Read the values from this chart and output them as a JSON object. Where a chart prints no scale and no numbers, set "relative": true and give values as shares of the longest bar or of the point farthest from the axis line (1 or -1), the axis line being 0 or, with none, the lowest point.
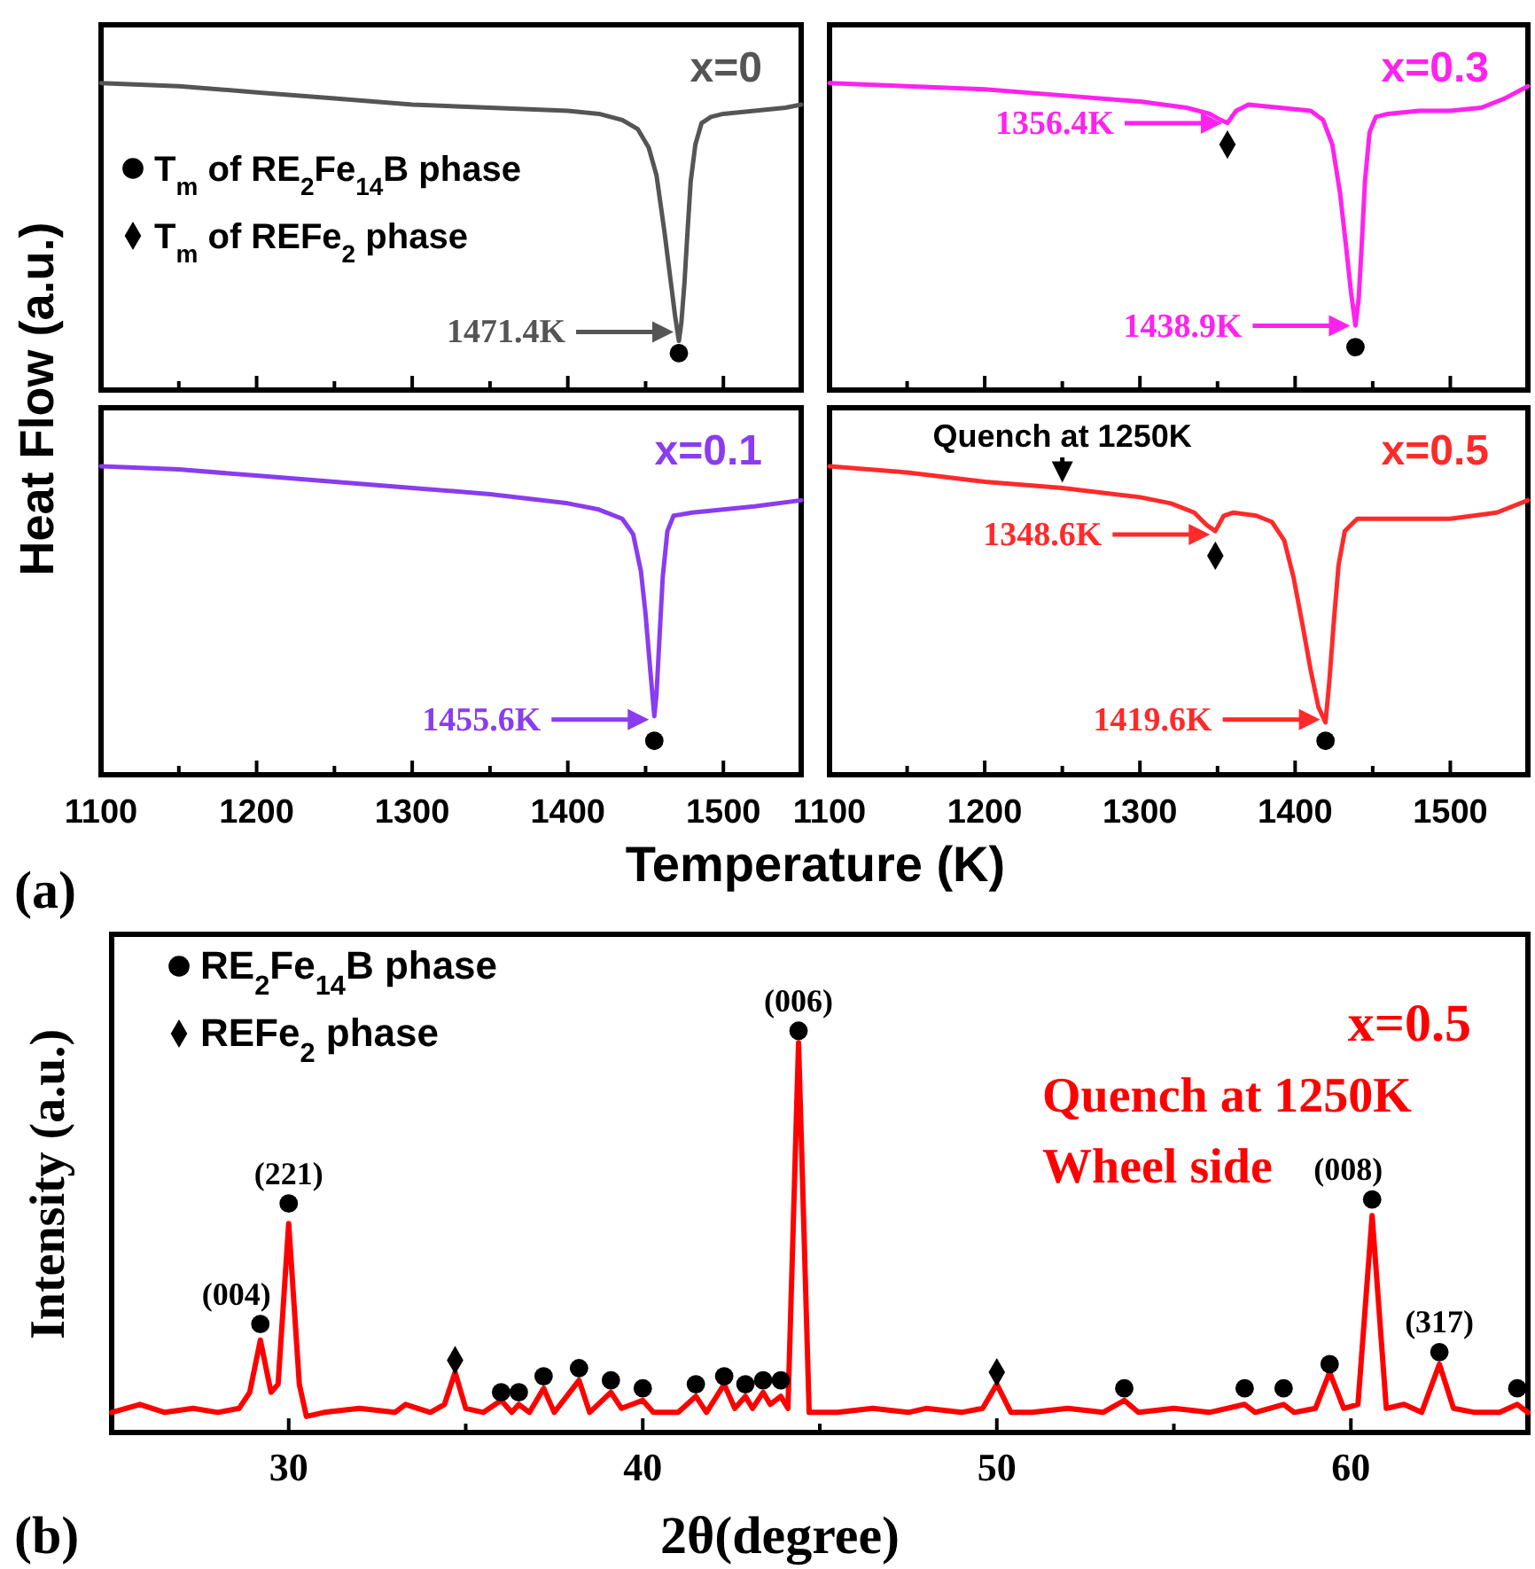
{
  "chart_data": [
    {
      "type": "line",
      "title": "x=0",
      "ylabel": "Heat Flow (a.u.)",
      "relative": true,
      "xlim": [
        1100,
        1550
      ],
      "xticks": [
        1100,
        {
          "value": 1150,
          "label": null
        },
        1200,
        {
          "value": 1250,
          "label": null
        },
        1300,
        {
          "value": 1350,
          "label": null
        },
        1400,
        {
          "value": 1450,
          "label": null
        },
        1500
      ],
      "tick_labels": false,
      "legend": "left",
      "annotations": [
        "1471.4K"
      ],
      "series": [
        {
          "color": "#555555",
          "x": [
            1100,
            1150,
            1200,
            1250,
            1300,
            1350,
            1400,
            1420,
            1435,
            1445,
            1452,
            1457,
            1462,
            1466,
            1469,
            1471.4,
            1473,
            1475,
            1477,
            1479,
            1482,
            1486,
            1492,
            1500,
            1520,
            1540,
            1550
          ],
          "values": [
            1,
            0.99,
            0.97,
            0.95,
            0.93,
            0.92,
            0.91,
            0.9,
            0.88,
            0.85,
            0.79,
            0.7,
            0.52,
            0.36,
            0.24,
            0.16,
            0.22,
            0.35,
            0.52,
            0.68,
            0.8,
            0.87,
            0.89,
            0.9,
            0.91,
            0.92,
            0.93
          ]
        },
        {
          "type": "scatter",
          "name": "T$_{m}$ of RE$_{2}$Fe$_{14}$B phase",
          "color": "#000000",
          "marker": "circle",
          "x": [
            1471.4
          ],
          "values": [
            0.12
          ]
        },
        {
          "type": "scatter",
          "name": "T$_{m}$ of REFe$_{2}$ phase",
          "color": "#000000",
          "marker": "diamond"
        }
      ]
    },
    {
      "type": "line",
      "title": "x=0.3",
      "relative": true,
      "xlim": [
        1100,
        1550
      ],
      "xticks": [
        1100,
        {
          "value": 1150,
          "label": null
        },
        1200,
        {
          "value": 1250,
          "label": null
        },
        1300,
        {
          "value": 1350,
          "label": null
        },
        1400,
        {
          "value": 1450,
          "label": null
        },
        1500
      ],
      "tick_labels": false,
      "annotations": [
        "1356.4K",
        "1438.9K"
      ],
      "series": [
        {
          "color": "#ff22ee",
          "x": [
            1100,
            1150,
            1200,
            1250,
            1300,
            1330,
            1345,
            1352,
            1356.4,
            1362,
            1370,
            1390,
            1410,
            1418,
            1424,
            1429,
            1433,
            1436,
            1438.9,
            1441,
            1443,
            1445,
            1448,
            1452,
            1460,
            1480,
            1500,
            1520,
            1535,
            1550
          ],
          "values": [
            1,
            0.99,
            0.98,
            0.96,
            0.94,
            0.92,
            0.9,
            0.88,
            0.87,
            0.91,
            0.93,
            0.92,
            0.91,
            0.88,
            0.8,
            0.64,
            0.46,
            0.32,
            0.21,
            0.3,
            0.48,
            0.68,
            0.84,
            0.89,
            0.9,
            0.91,
            0.91,
            0.92,
            0.95,
            0.99
          ]
        },
        {
          "type": "scatter",
          "color": "#000000",
          "marker": "diamond",
          "x": [
            1356.4
          ],
          "values": [
            0.8
          ]
        },
        {
          "type": "scatter",
          "color": "#000000",
          "marker": "circle",
          "x": [
            1438.9
          ],
          "values": [
            0.14
          ]
        }
      ]
    },
    {
      "type": "line",
      "title": "x=0.1",
      "xlabel": "Temperature (K)",
      "relative": true,
      "xlim": [
        1100,
        1550
      ],
      "xticks": [
        1100,
        {
          "value": 1150,
          "label": null
        },
        1200,
        {
          "value": 1250,
          "label": null
        },
        1300,
        {
          "value": 1350,
          "label": null
        },
        1400,
        {
          "value": 1450,
          "label": null
        },
        1500
      ],
      "tick_labels": "x",
      "annotations": [
        "(a)",
        "1455.6K"
      ],
      "series": [
        {
          "color": "#8a3cf0",
          "x": [
            1100,
            1150,
            1200,
            1250,
            1300,
            1350,
            1400,
            1420,
            1435,
            1442,
            1447,
            1450,
            1453,
            1455.6,
            1457,
            1459,
            1461,
            1464,
            1468,
            1480,
            1500,
            1520,
            1550
          ],
          "values": [
            1,
            0.99,
            0.97,
            0.95,
            0.93,
            0.91,
            0.88,
            0.86,
            0.83,
            0.78,
            0.66,
            0.52,
            0.34,
            0.19,
            0.26,
            0.45,
            0.64,
            0.79,
            0.84,
            0.85,
            0.86,
            0.87,
            0.89
          ]
        },
        {
          "type": "scatter",
          "color": "#000000",
          "marker": "circle",
          "x": [
            1455.6
          ],
          "values": [
            0.11
          ]
        }
      ]
    },
    {
      "type": "line",
      "title": "x=0.5",
      "relative": true,
      "xlim": [
        1100,
        1550
      ],
      "xticks": [
        1100,
        {
          "value": 1150,
          "label": null
        },
        1200,
        {
          "value": 1250,
          "label": null
        },
        1300,
        {
          "value": 1350,
          "label": null
        },
        1400,
        {
          "value": 1450,
          "label": null
        },
        1500
      ],
      "tick_labels": "x",
      "annotations": [
        {
          "text": "Quench at 1250K",
          "x": 1250,
          "y": 0.93
        },
        "1348.6K",
        "1419.6K"
      ],
      "series": [
        {
          "color": "#ff2a2a",
          "x": [
            1100,
            1150,
            1200,
            1250,
            1300,
            1320,
            1335,
            1343,
            1348.6,
            1354,
            1360,
            1375,
            1385,
            1393,
            1399,
            1405,
            1410,
            1415,
            1419.6,
            1422,
            1425,
            1428,
            1432,
            1440,
            1460,
            1500,
            1530,
            1550
          ],
          "values": [
            1,
            0.98,
            0.95,
            0.93,
            0.9,
            0.88,
            0.85,
            0.81,
            0.79,
            0.84,
            0.85,
            0.84,
            0.82,
            0.76,
            0.64,
            0.48,
            0.34,
            0.22,
            0.17,
            0.3,
            0.5,
            0.68,
            0.79,
            0.83,
            0.83,
            0.83,
            0.85,
            0.89
          ]
        },
        {
          "type": "scatter",
          "color": "#000000",
          "marker": "diamond",
          "x": [
            1348.6
          ],
          "values": [
            0.71
          ]
        },
        {
          "type": "scatter",
          "color": "#000000",
          "marker": "circle",
          "x": [
            1419.6
          ],
          "values": [
            0.11
          ]
        }
      ]
    },
    {
      "type": "line",
      "title": "x=0.5",
      "xlabel": "2θ(degree)",
      "ylabel": "Intensity (a.u.)",
      "relative": true,
      "xlim": [
        25,
        65
      ],
      "xticks": [
        30,
        {
          "value": 35,
          "label": null
        },
        40,
        {
          "value": 45,
          "label": null
        },
        50,
        {
          "value": 55,
          "label": null
        },
        60
      ],
      "tick_labels": "x",
      "legend": "top left",
      "annotations": [
        "(b)",
        "Quench at 1250K",
        "Wheel side",
        {
          "text": "(004)",
          "x": 29.2,
          "y": 0.27
        },
        {
          "text": "(221)",
          "x": 30.0,
          "y": 0.57
        },
        {
          "text": "(006)",
          "x": 44.4,
          "y": 1
        },
        {
          "text": "(008)",
          "x": 60.6,
          "y": 0.58
        },
        {
          "text": "(317)",
          "x": 62.5,
          "y": 0.2
        }
      ],
      "series": [
        {
          "color": "#ff0000",
          "x": [
            25,
            25.8,
            26.5,
            27.3,
            28,
            28.6,
            28.9,
            29.2,
            29.5,
            29.7,
            30.0,
            30.3,
            30.5,
            31,
            32,
            33,
            33.3,
            34,
            34.4,
            34.7,
            35,
            35.5,
            36.0,
            36.3,
            36.5,
            36.8,
            37.2,
            37.5,
            38.2,
            38.5,
            39.1,
            39.4,
            40,
            40.3,
            41,
            41.5,
            41.8,
            42.3,
            42.6,
            42.9,
            43.1,
            43.4,
            43.6,
            43.9,
            44.1,
            44.4,
            44.7,
            45.5,
            46.5,
            47.5,
            48,
            49,
            49.6,
            50.0,
            50.4,
            51,
            52,
            53,
            53.6,
            54,
            55,
            56,
            57.0,
            57.3,
            58.1,
            58.4,
            59,
            59.4,
            59.8,
            60.2,
            60.6,
            61,
            61.5,
            62,
            62.5,
            62.9,
            63.5,
            64.2,
            64.7,
            65
          ],
          "values": [
            0.05,
            0.07,
            0.05,
            0.06,
            0.05,
            0.06,
            0.1,
            0.23,
            0.1,
            0.12,
            0.52,
            0.12,
            0.04,
            0.05,
            0.06,
            0.05,
            0.07,
            0.05,
            0.07,
            0.15,
            0.06,
            0.05,
            0.08,
            0.05,
            0.07,
            0.05,
            0.11,
            0.05,
            0.13,
            0.05,
            0.1,
            0.06,
            0.08,
            0.05,
            0.05,
            0.09,
            0.05,
            0.12,
            0.06,
            0.09,
            0.06,
            0.1,
            0.07,
            0.09,
            0.06,
            0.97,
            0.05,
            0.05,
            0.06,
            0.05,
            0.06,
            0.05,
            0.06,
            0.12,
            0.05,
            0.05,
            0.06,
            0.05,
            0.08,
            0.05,
            0.06,
            0.05,
            0.07,
            0.05,
            0.07,
            0.05,
            0.06,
            0.15,
            0.06,
            0.07,
            0.54,
            0.06,
            0.07,
            0.05,
            0.17,
            0.06,
            0.05,
            0.05,
            0.07,
            0.05
          ]
        },
        {
          "type": "scatter",
          "name": "RE$_{2}$Fe$_{14}$B phase",
          "color": "#000000",
          "marker": "circle",
          "x": [
            29.2,
            30.0,
            36.0,
            36.5,
            37.2,
            38.2,
            39.1,
            40.0,
            41.5,
            42.3,
            42.9,
            43.4,
            43.9,
            44.4,
            53.6,
            57.0,
            58.1,
            59.4,
            60.6,
            62.5,
            64.7
          ],
          "values": [
            0.27,
            0.57,
            0.1,
            0.1,
            0.14,
            0.16,
            0.13,
            0.11,
            0.12,
            0.14,
            0.12,
            0.13,
            0.13,
            1,
            0.11,
            0.11,
            0.11,
            0.17,
            0.58,
            0.2,
            0.11
          ]
        },
        {
          "type": "scatter",
          "name": "REFe$_{2}$ phase",
          "color": "#000000",
          "marker": "diamond",
          "x": [
            34.7,
            50.0
          ],
          "values": [
            0.18,
            0.15
          ]
        }
      ]
    }
  ]
}
